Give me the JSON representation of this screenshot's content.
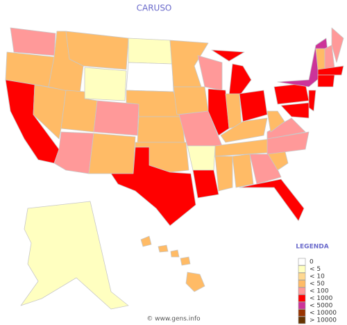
{
  "title": "CARUSO",
  "legend": {
    "title": "LEGENDA",
    "items": [
      {
        "label": "0",
        "color": "#ffffff"
      },
      {
        "label": "< 5",
        "color": "#ffffc0"
      },
      {
        "label": "< 10",
        "color": "#ffd890"
      },
      {
        "label": "< 50",
        "color": "#ffbb66"
      },
      {
        "label": "< 100",
        "color": "#ff9999"
      },
      {
        "label": "< 1000",
        "color": "#ff0000"
      },
      {
        "label": "< 5000",
        "color": "#cc3399"
      },
      {
        "label": "< 10000",
        "color": "#993300"
      },
      {
        "label": "> 10000",
        "color": "#663300"
      }
    ]
  },
  "footer": "© www.gens.info"
}
